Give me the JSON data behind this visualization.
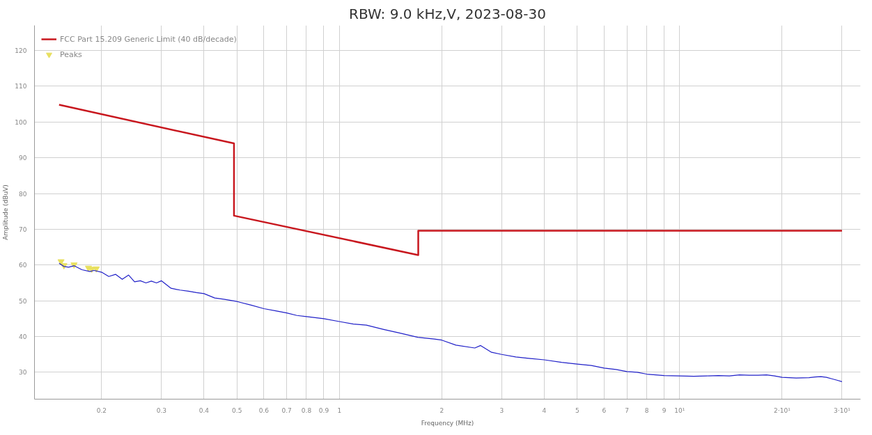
{
  "chart_data": {
    "type": "line",
    "title": "RBW: 9.0 kHz,V, 2023-08-30",
    "xlabel": "Frequency (MHz)",
    "ylabel": "Amplitude (dBuV)",
    "log": "x",
    "xlim": [
      0.127,
      34
    ],
    "ylim": [
      22.5,
      127
    ],
    "xticks": [
      0.2,
      0.3,
      0.4,
      0.5,
      0.6,
      0.7,
      0.8,
      0.9,
      1,
      2,
      3,
      4,
      5,
      6,
      7,
      8,
      9,
      {
        "value": 10,
        "label": "10¹"
      },
      {
        "value": 20,
        "label": "2·10¹"
      },
      {
        "value": 30,
        "label": "3·10¹"
      }
    ],
    "yticks": [
      30,
      40,
      50,
      60,
      70,
      80,
      90,
      100,
      110,
      120
    ],
    "grid": true,
    "legend": "top left",
    "series": [
      {
        "name": "FCC Part 15.209 Generic Limit (40 dB/decade)",
        "color": "#c8171e",
        "type": "line",
        "x": [
          0.15,
          0.49,
          0.49,
          1.705,
          1.705,
          30
        ],
        "values": [
          104.8,
          94.0,
          73.8,
          62.8,
          69.6,
          69.6
        ]
      },
      {
        "name": "Peaks",
        "color": "#e8e060",
        "type": "scatter",
        "marker": "triangle",
        "x": [
          0.152,
          0.155,
          0.166,
          0.183,
          0.187,
          0.193
        ],
        "values": [
          61.0,
          59.9,
          60.1,
          59.2,
          58.9,
          59.0
        ]
      },
      {
        "color": "#2020c8",
        "x": [
          0.15,
          0.155,
          0.16,
          0.166,
          0.175,
          0.185,
          0.19,
          0.2,
          0.21,
          0.22,
          0.23,
          0.24,
          0.25,
          0.26,
          0.27,
          0.28,
          0.29,
          0.3,
          0.32,
          0.34,
          0.36,
          0.38,
          0.4,
          0.43,
          0.46,
          0.5,
          0.55,
          0.6,
          0.65,
          0.7,
          0.75,
          0.8,
          0.9,
          1.0,
          1.1,
          1.2,
          1.35,
          1.5,
          1.7,
          1.9,
          2.0,
          2.2,
          2.5,
          2.6,
          2.8,
          3.0,
          3.3,
          3.6,
          4.0,
          4.5,
          5.0,
          5.5,
          6.0,
          6.5,
          7.0,
          7.5,
          8.0,
          8.5,
          9.0,
          10,
          11,
          12,
          13,
          14,
          15,
          16,
          17,
          18,
          19,
          20,
          22,
          24,
          25,
          26,
          27,
          28,
          29,
          30
        ],
        "values": [
          60.5,
          59.6,
          59.4,
          59.8,
          58.7,
          58.2,
          58.5,
          58.0,
          56.8,
          57.4,
          56.0,
          57.2,
          55.3,
          55.6,
          55.0,
          55.5,
          55.0,
          55.6,
          53.5,
          53.0,
          52.7,
          52.3,
          52.0,
          50.8,
          50.4,
          49.8,
          48.8,
          47.8,
          47.2,
          46.6,
          45.9,
          45.6,
          45.0,
          44.2,
          43.5,
          43.2,
          42.0,
          41.0,
          39.8,
          39.3,
          39.0,
          37.6,
          36.8,
          37.5,
          35.6,
          35.0,
          34.3,
          33.9,
          33.5,
          32.8,
          32.3,
          31.9,
          31.2,
          30.8,
          30.2,
          30.0,
          29.5,
          29.3,
          29.1,
          29.0,
          28.9,
          29.0,
          29.1,
          29.0,
          29.3,
          29.2,
          29.2,
          29.3,
          29.0,
          28.6,
          28.4,
          28.5,
          28.7,
          28.8,
          28.6,
          28.2,
          27.8,
          27.4
        ]
      }
    ]
  }
}
